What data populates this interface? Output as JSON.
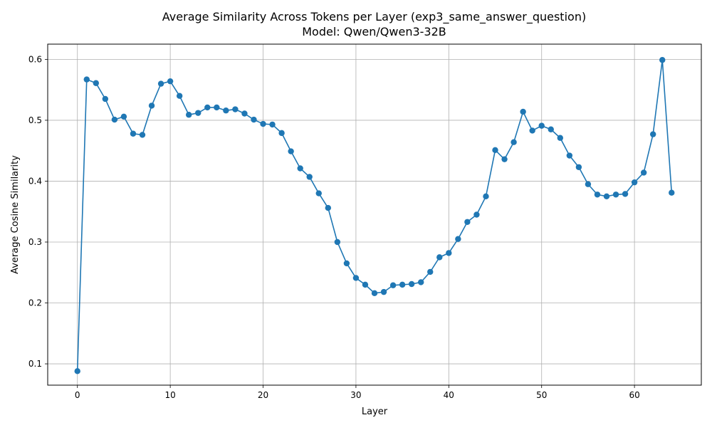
{
  "chart_data": {
    "type": "line",
    "title": "Average Similarity Across Tokens per Layer (exp3_same_answer_question)",
    "subtitle": "Model: Qwen/Qwen3-32B",
    "xlabel": "Layer",
    "ylabel": "Average Cosine Similarity",
    "xlim": [
      -3.2,
      67.2
    ],
    "ylim": [
      0.065,
      0.625
    ],
    "xticks": [
      0,
      10,
      20,
      30,
      40,
      50,
      60
    ],
    "yticks": [
      0.1,
      0.2,
      0.3,
      0.4,
      0.5,
      0.6
    ],
    "grid": true,
    "series_color": "#1f77b4",
    "series": [
      {
        "x": [
          0,
          1,
          2,
          3,
          4,
          5,
          6,
          7,
          8,
          9,
          10,
          11,
          12,
          13,
          14,
          15,
          16,
          17,
          18,
          19,
          20,
          21,
          22,
          23,
          24,
          25,
          26,
          27,
          28,
          29,
          30,
          31,
          32,
          33,
          34,
          35,
          36,
          37,
          38,
          39,
          40,
          41,
          42,
          43,
          44,
          45,
          46,
          47,
          48,
          49,
          50,
          51,
          52,
          53,
          54,
          55,
          56,
          57,
          58,
          59,
          60,
          61,
          62,
          63,
          64
        ],
        "values": [
          0.088,
          0.567,
          0.561,
          0.535,
          0.501,
          0.506,
          0.478,
          0.476,
          0.524,
          0.56,
          0.564,
          0.54,
          0.509,
          0.512,
          0.521,
          0.521,
          0.516,
          0.518,
          0.511,
          0.501,
          0.494,
          0.493,
          0.479,
          0.449,
          0.421,
          0.407,
          0.38,
          0.356,
          0.3,
          0.265,
          0.241,
          0.23,
          0.216,
          0.218,
          0.229,
          0.23,
          0.231,
          0.234,
          0.251,
          0.275,
          0.282,
          0.305,
          0.333,
          0.345,
          0.375,
          0.451,
          0.436,
          0.464,
          0.514,
          0.483,
          0.491,
          0.485,
          0.471,
          0.442,
          0.423,
          0.395,
          0.378,
          0.375,
          0.378,
          0.379,
          0.398,
          0.414,
          0.477,
          0.599,
          0.381
        ]
      }
    ]
  }
}
